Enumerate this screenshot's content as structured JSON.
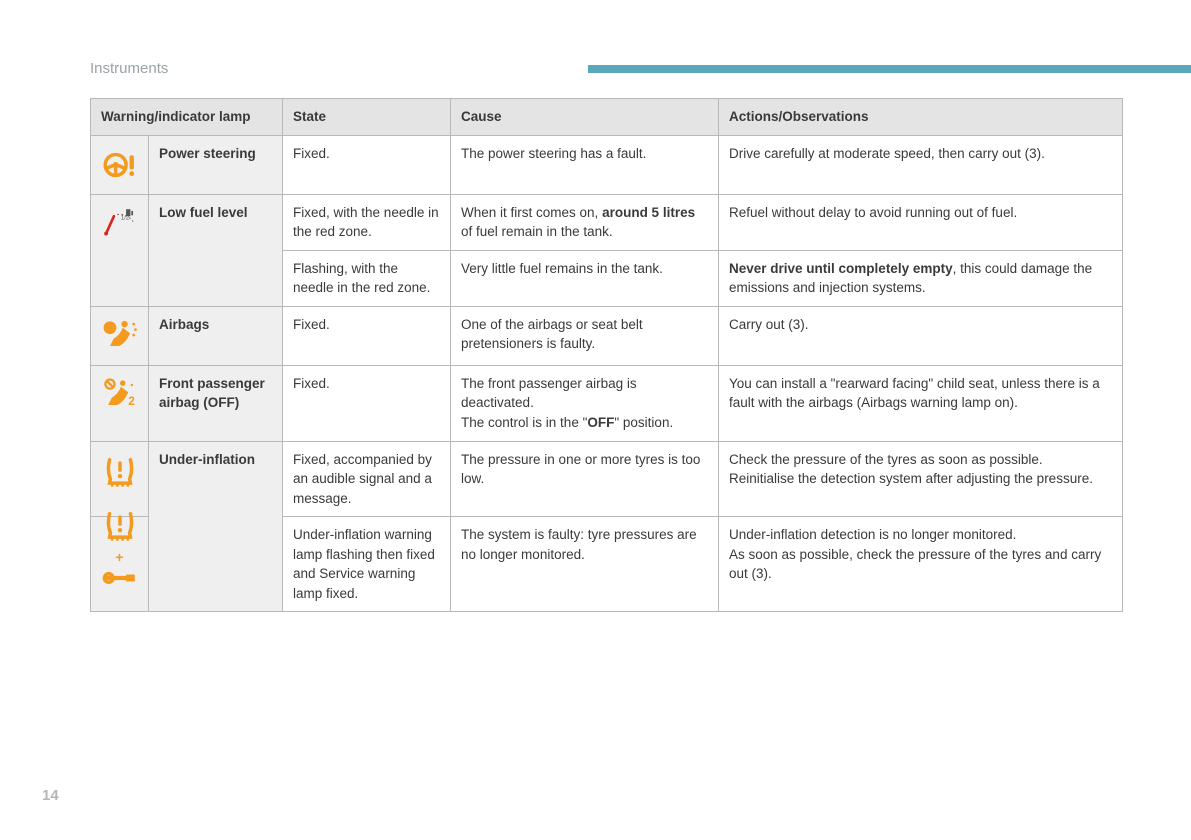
{
  "page": {
    "section_title": "Instruments",
    "page_number": "14",
    "accent_color": "#5aa6bb",
    "icon_color": "#f39a1f",
    "header_bg": "#e4e4e4",
    "shaded_bg": "#efefef",
    "border_color": "#b8b8b8"
  },
  "table": {
    "headers": {
      "warning": "Warning/indicator lamp",
      "state": "State",
      "cause": "Cause",
      "actions": "Actions/Observations"
    },
    "rows": [
      {
        "icon": "power-steering",
        "name": "Power steering",
        "states": [
          {
            "state": "Fixed.",
            "cause": [
              {
                "t": "The power steering has a fault."
              }
            ],
            "actions": [
              {
                "t": "Drive carefully at moderate speed, then carry out (3)."
              }
            ]
          }
        ]
      },
      {
        "icon": "low-fuel",
        "name": "Low fuel level",
        "states": [
          {
            "state": "Fixed, with the needle in the red zone.",
            "cause": [
              {
                "t": "When it first comes on, "
              },
              {
                "b": "around 5 litres"
              },
              {
                "t": " of fuel remain in the tank."
              }
            ],
            "actions": [
              {
                "t": "Refuel without delay to avoid running out of fuel."
              }
            ]
          },
          {
            "state": "Flashing, with the needle in the red zone.",
            "cause": [
              {
                "t": "Very little fuel remains in the tank."
              }
            ],
            "actions": [
              {
                "b": "Never drive until completely empty"
              },
              {
                "t": ", this could damage the emissions and injection systems."
              }
            ]
          }
        ]
      },
      {
        "icon": "airbag",
        "name": "Airbags",
        "states": [
          {
            "state": "Fixed.",
            "cause": [
              {
                "t": "One of the airbags or seat belt pretensioners is faulty."
              }
            ],
            "actions": [
              {
                "t": "Carry out (3)."
              }
            ]
          }
        ]
      },
      {
        "icon": "airbag-off",
        "name": "Front passenger airbag (OFF)",
        "states": [
          {
            "state": "Fixed.",
            "cause": [
              {
                "t": "The front passenger airbag is deactivated."
              },
              {
                "br": 1
              },
              {
                "t": "The control is in the \""
              },
              {
                "b": "OFF"
              },
              {
                "t": "\" position."
              }
            ],
            "actions": [
              {
                "t": "You can install a \"rearward facing\" child seat, unless there is a fault with the airbags (Airbags warning lamp on)."
              }
            ]
          }
        ]
      },
      {
        "icon": "under-inflation",
        "name": "Under-inflation",
        "states": [
          {
            "state": "Fixed, accompanied by an audible signal and a message.",
            "cause": [
              {
                "t": "The pressure in one or more tyres is too low."
              }
            ],
            "actions": [
              {
                "t": "Check the pressure of the tyres as soon as possible."
              },
              {
                "br": 1
              },
              {
                "t": "Reinitialise the detection system after adjusting the pressure."
              }
            ]
          },
          {
            "icon_override": "under-inflation-service",
            "state": "Under-inflation warning lamp flashing then fixed and Service warning lamp fixed.",
            "cause": [
              {
                "t": "The system is faulty: tyre pressures are no longer monitored."
              }
            ],
            "actions": [
              {
                "t": "Under-inflation detection is no longer monitored."
              },
              {
                "br": 1
              },
              {
                "t": "As soon as possible, check the pressure of the tyres and carry out (3)."
              }
            ]
          }
        ]
      }
    ]
  }
}
